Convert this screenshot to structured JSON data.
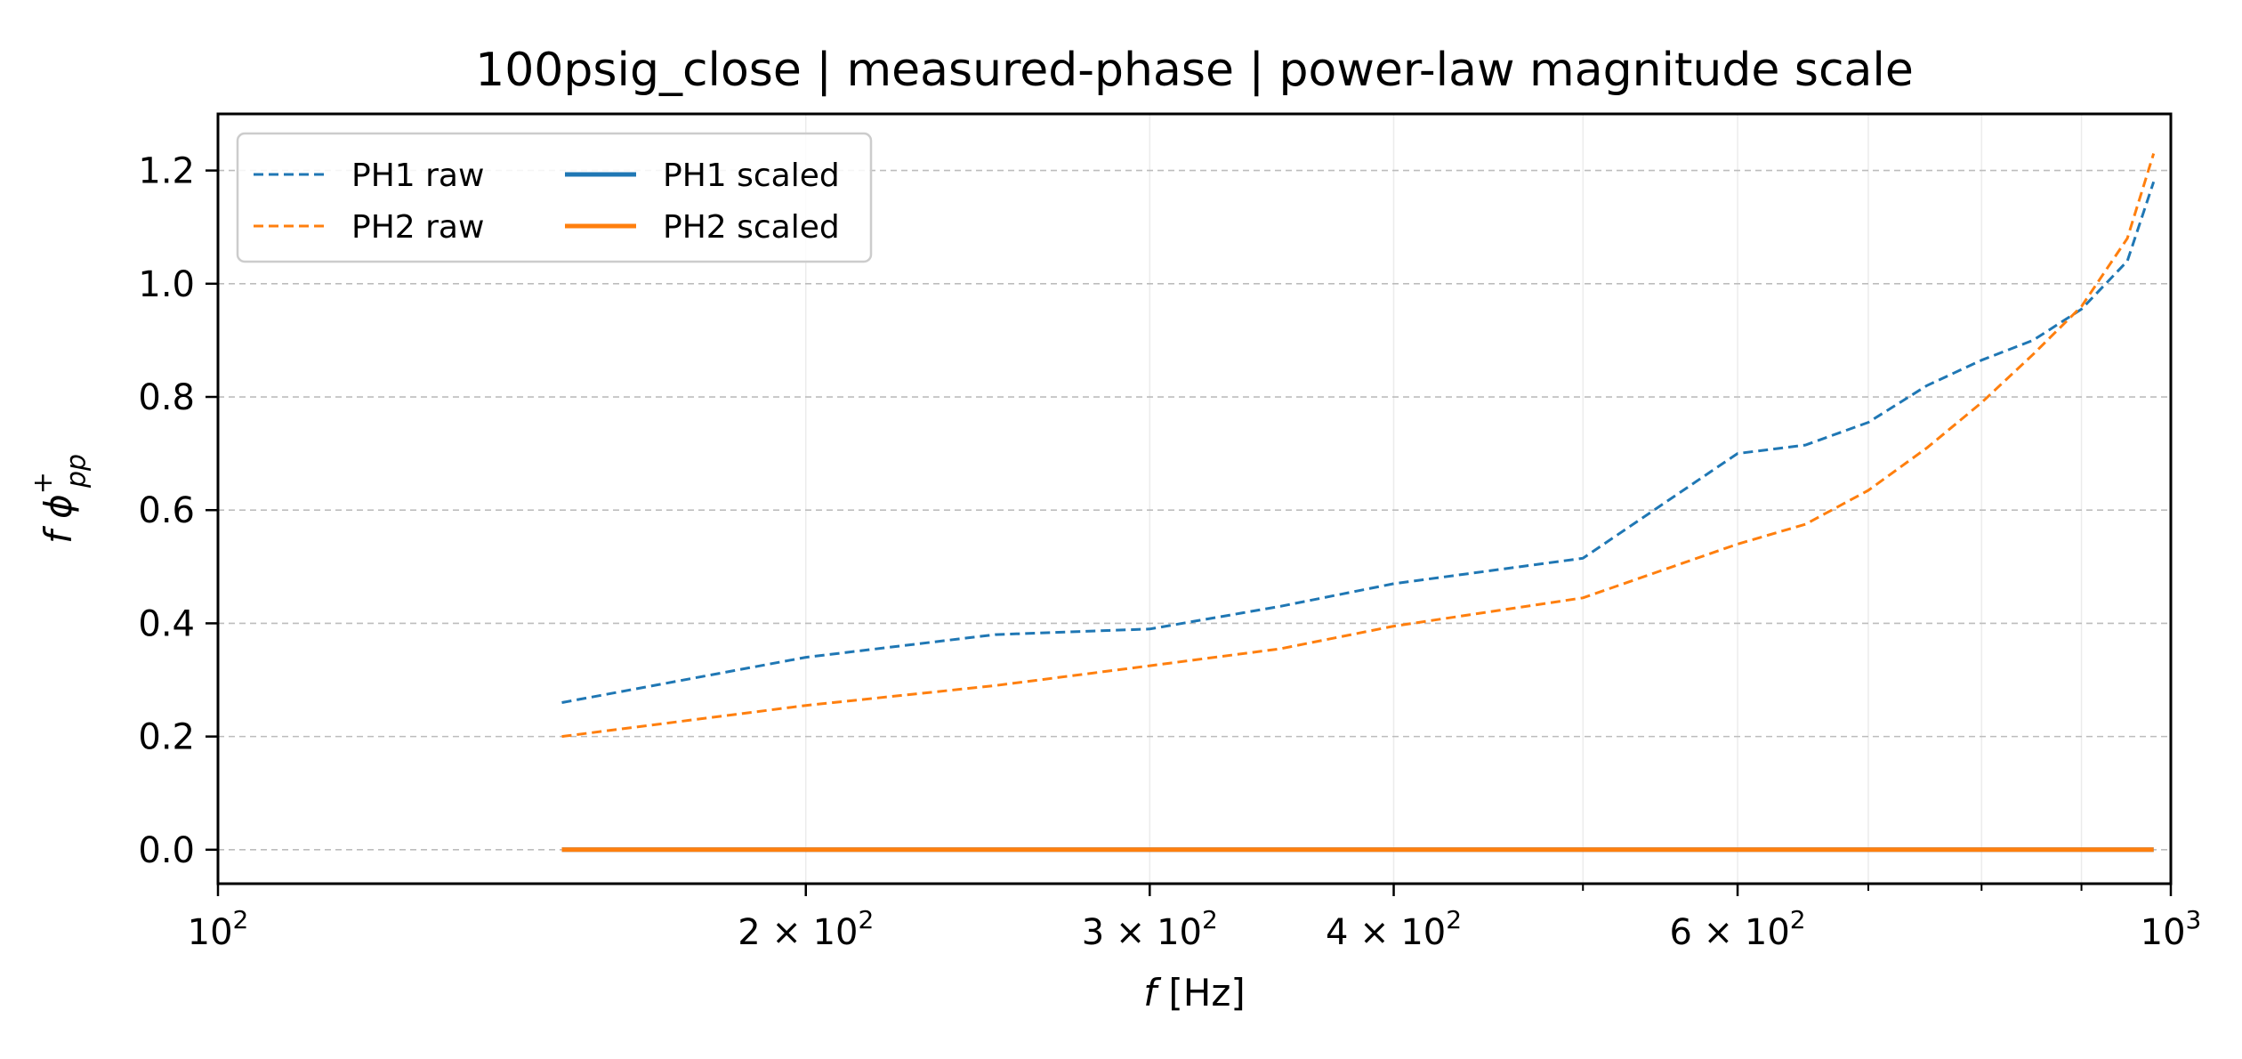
{
  "chart_data": {
    "type": "line",
    "title": "100psig_close | measured-phase | power-law magnitude scale",
    "xlabel": {
      "var": "f",
      "unit": "[Hz]"
    },
    "ylabel": {
      "base": "f",
      "symbol": "ϕ",
      "sub": "pp",
      "sup": "+"
    },
    "xscale": "log",
    "xlim": [
      100,
      1000
    ],
    "ylim": [
      -0.06,
      1.3
    ],
    "x_ticks": [
      {
        "value": 100,
        "mantissa": "",
        "exp": "2"
      },
      {
        "value": 200,
        "mantissa": "2 × ",
        "exp": "2"
      },
      {
        "value": 300,
        "mantissa": "3 × ",
        "exp": "2"
      },
      {
        "value": 400,
        "mantissa": "4 × ",
        "exp": "2"
      },
      {
        "value": 600,
        "mantissa": "6 × ",
        "exp": "2"
      },
      {
        "value": 1000,
        "mantissa": "",
        "exp": "3"
      }
    ],
    "y_ticks": [
      0.0,
      0.2,
      0.4,
      0.6,
      0.8,
      1.0,
      1.2
    ],
    "y_tick_labels": [
      "0.0",
      "0.2",
      "0.4",
      "0.6",
      "0.8",
      "1.0",
      "1.2"
    ],
    "grid": true,
    "legend_position": "top-left",
    "series": [
      {
        "name": "PH1 raw",
        "color": "#1f77b4",
        "style": "dashed",
        "x": [
          150,
          200,
          250,
          300,
          350,
          400,
          500,
          600,
          650,
          700,
          750,
          800,
          850,
          900,
          950,
          980
        ],
        "y": [
          0.26,
          0.34,
          0.38,
          0.39,
          0.43,
          0.47,
          0.515,
          0.7,
          0.715,
          0.755,
          0.82,
          0.865,
          0.9,
          0.955,
          1.04,
          1.18
        ]
      },
      {
        "name": "PH2 raw",
        "color": "#ff7f0e",
        "style": "dashed",
        "x": [
          150,
          200,
          250,
          300,
          350,
          400,
          500,
          600,
          650,
          700,
          750,
          800,
          850,
          900,
          950,
          980
        ],
        "y": [
          0.2,
          0.255,
          0.29,
          0.325,
          0.355,
          0.395,
          0.445,
          0.54,
          0.575,
          0.635,
          0.71,
          0.79,
          0.875,
          0.96,
          1.08,
          1.23
        ]
      },
      {
        "name": "PH1 scaled",
        "color": "#1f77b4",
        "style": "solid",
        "x": [
          150,
          980
        ],
        "y": [
          0.0,
          0.0
        ]
      },
      {
        "name": "PH2 scaled",
        "color": "#ff7f0e",
        "style": "solid",
        "x": [
          150,
          980
        ],
        "y": [
          0.0,
          0.0
        ]
      }
    ]
  }
}
